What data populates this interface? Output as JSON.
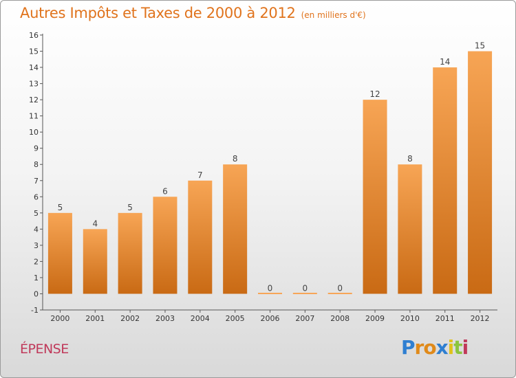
{
  "header": {
    "title": "Autres Impôts et Taxes de 2000 à 2012",
    "subtitle": "(en milliers d'€)"
  },
  "commune": "ÉPENSE",
  "logo": {
    "letters": [
      "P",
      "r",
      "o",
      "x",
      "i",
      "t",
      "i"
    ],
    "colors": [
      "#2f7fd1",
      "#e08a1a",
      "#e08a1a",
      "#2f7fd1",
      "#e0c21a",
      "#8bc53f",
      "#c0395a"
    ]
  },
  "colors": {
    "bar_top": "#f7a555",
    "bar_bottom": "#c96a14",
    "accent": "#e0731c",
    "axis": "#555555"
  },
  "chart_data": {
    "type": "bar",
    "title": "Autres Impôts et Taxes de 2000 à 2012",
    "subtitle": "(en milliers d'€)",
    "categories": [
      "2000",
      "2001",
      "2002",
      "2003",
      "2004",
      "2005",
      "2006",
      "2007",
      "2008",
      "2009",
      "2010",
      "2011",
      "2012"
    ],
    "values": [
      5,
      4,
      5,
      6,
      7,
      8,
      0,
      0,
      0,
      12,
      8,
      14,
      15
    ],
    "ylim": [
      -1,
      16
    ],
    "yticks": [
      -1,
      0,
      1,
      2,
      3,
      4,
      5,
      6,
      7,
      8,
      9,
      10,
      11,
      12,
      13,
      14,
      15,
      16
    ],
    "data_labels": [
      "5",
      "4",
      "5",
      "6",
      "7",
      "8",
      "0",
      "0",
      "0",
      "12",
      "8",
      "14",
      "15"
    ],
    "grid": false
  }
}
